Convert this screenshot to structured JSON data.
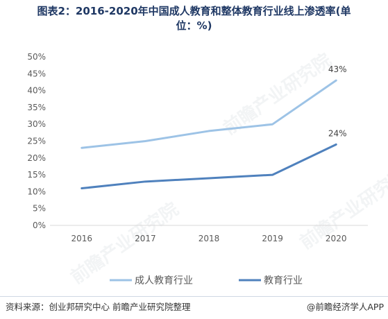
{
  "header": {
    "title_line1": "图表2：2016-2020年中国成人教育和整体教育行业线上渗透率(单",
    "title_line2": "位：%)"
  },
  "footer": {
    "source": "资料来源：创业邦研究中心 前瞻产业研究院整理",
    "brand": "@前瞻经济学人APP"
  },
  "watermark": {
    "text": "前瞻产业研究院"
  },
  "chart_data": {
    "type": "line",
    "x": [
      "2016",
      "2017",
      "2018",
      "2019",
      "2020"
    ],
    "yticks": [
      "0%",
      "5%",
      "10%",
      "15%",
      "20%",
      "25%",
      "30%",
      "35%",
      "40%",
      "45%",
      "50%"
    ],
    "ylim": [
      0,
      50
    ],
    "grid": false,
    "legend_position": "bottom",
    "series": [
      {
        "name": "成人教育行业",
        "color": "#9dc3e6",
        "values": [
          23,
          25,
          28,
          30,
          43
        ],
        "end_label": "43%"
      },
      {
        "name": "教育行业",
        "color": "#4f81bd",
        "values": [
          11,
          13,
          14,
          15,
          24
        ],
        "end_label": "24%"
      }
    ]
  }
}
